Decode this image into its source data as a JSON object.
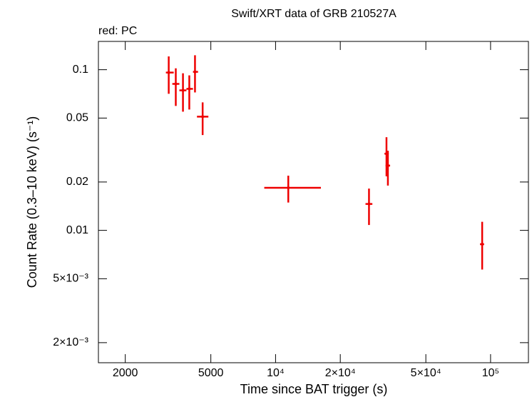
{
  "chart_data": {
    "type": "errorbar-scatter",
    "title": "Swift/XRT data of GRB 210527A",
    "x_label": "Time since BAT trigger (s)",
    "y_label": "Count Rate (0.3–10 keV) (s⁻¹)",
    "x_log": true,
    "y_log": true,
    "xlim": [
      1500,
      150000
    ],
    "ylim": [
      0.0015,
      0.15
    ],
    "xticks": [
      2000,
      5000,
      {
        "value": 10000,
        "label": "10⁴"
      },
      {
        "value": 20000,
        "label": "2×10⁴"
      },
      {
        "value": 50000,
        "label": "5×10⁴"
      },
      {
        "value": 100000,
        "label": "10⁵"
      }
    ],
    "yticks": [
      {
        "value": 0.002,
        "label": "2×10⁻³"
      },
      {
        "value": 0.005,
        "label": "5×10⁻³"
      },
      0.01,
      0.02,
      0.05,
      0.1
    ],
    "series": [
      {
        "name": "red: PC",
        "color": "#ee0000",
        "x": [
          3185,
          3435,
          3710,
          3970,
          4220,
          4580,
          11460,
          27200,
          32800,
          33300,
          91400
        ],
        "xmin": [
          3090,
          3310,
          3570,
          3850,
          4130,
          4310,
          8860,
          26200,
          32100,
          32500,
          89300
        ],
        "xmax": [
          3360,
          3570,
          3850,
          4130,
          4360,
          4870,
          16250,
          28200,
          33600,
          34100,
          93300
        ],
        "y": [
          0.096,
          0.0816,
          0.0744,
          0.076,
          0.097,
          0.051,
          0.0184,
          0.0146,
          0.03,
          0.0253,
          0.0082
        ],
        "ymin": [
          0.0708,
          0.0595,
          0.0548,
          0.0565,
          0.0722,
          0.0392,
          0.0149,
          0.0108,
          0.0217,
          0.019,
          0.0057
        ],
        "ymax": [
          0.121,
          0.102,
          0.095,
          0.0922,
          0.123,
          0.0626,
          0.0219,
          0.0182,
          0.038,
          0.0313,
          0.0113
        ]
      }
    ]
  }
}
